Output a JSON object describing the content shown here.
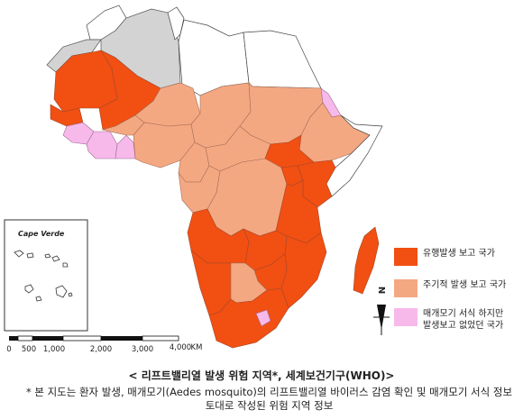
{
  "legend": {
    "items": [
      {
        "label": "유행발생 보고 국가",
        "color": "#f24f12"
      },
      {
        "label": "주기적 발생 보고 국가",
        "color": "#f4a882"
      },
      {
        "label": "매개모기 서식 하지만\n발생보고 없었던 국가",
        "color": "#f7b8ea"
      }
    ]
  },
  "inset": {
    "title": "Cape Verde"
  },
  "scale_bar": {
    "ticks": [
      "0",
      "500",
      "1,000",
      "2,000",
      "3,000",
      "4,000"
    ],
    "unit": "KM"
  },
  "north_arrow": {
    "label": "N"
  },
  "caption": {
    "title": "< 리프트밸리열 발생 위험 지역*, 세계보건기구(WHO)>",
    "note": "* 본 지도는 환자 발생, 매개모기(Aedes mosquito)의 리프트밸리열 바이러스 감염 확인 및 매개모기 서식 정보 토대로 작성된 위험 지역 정보"
  }
}
